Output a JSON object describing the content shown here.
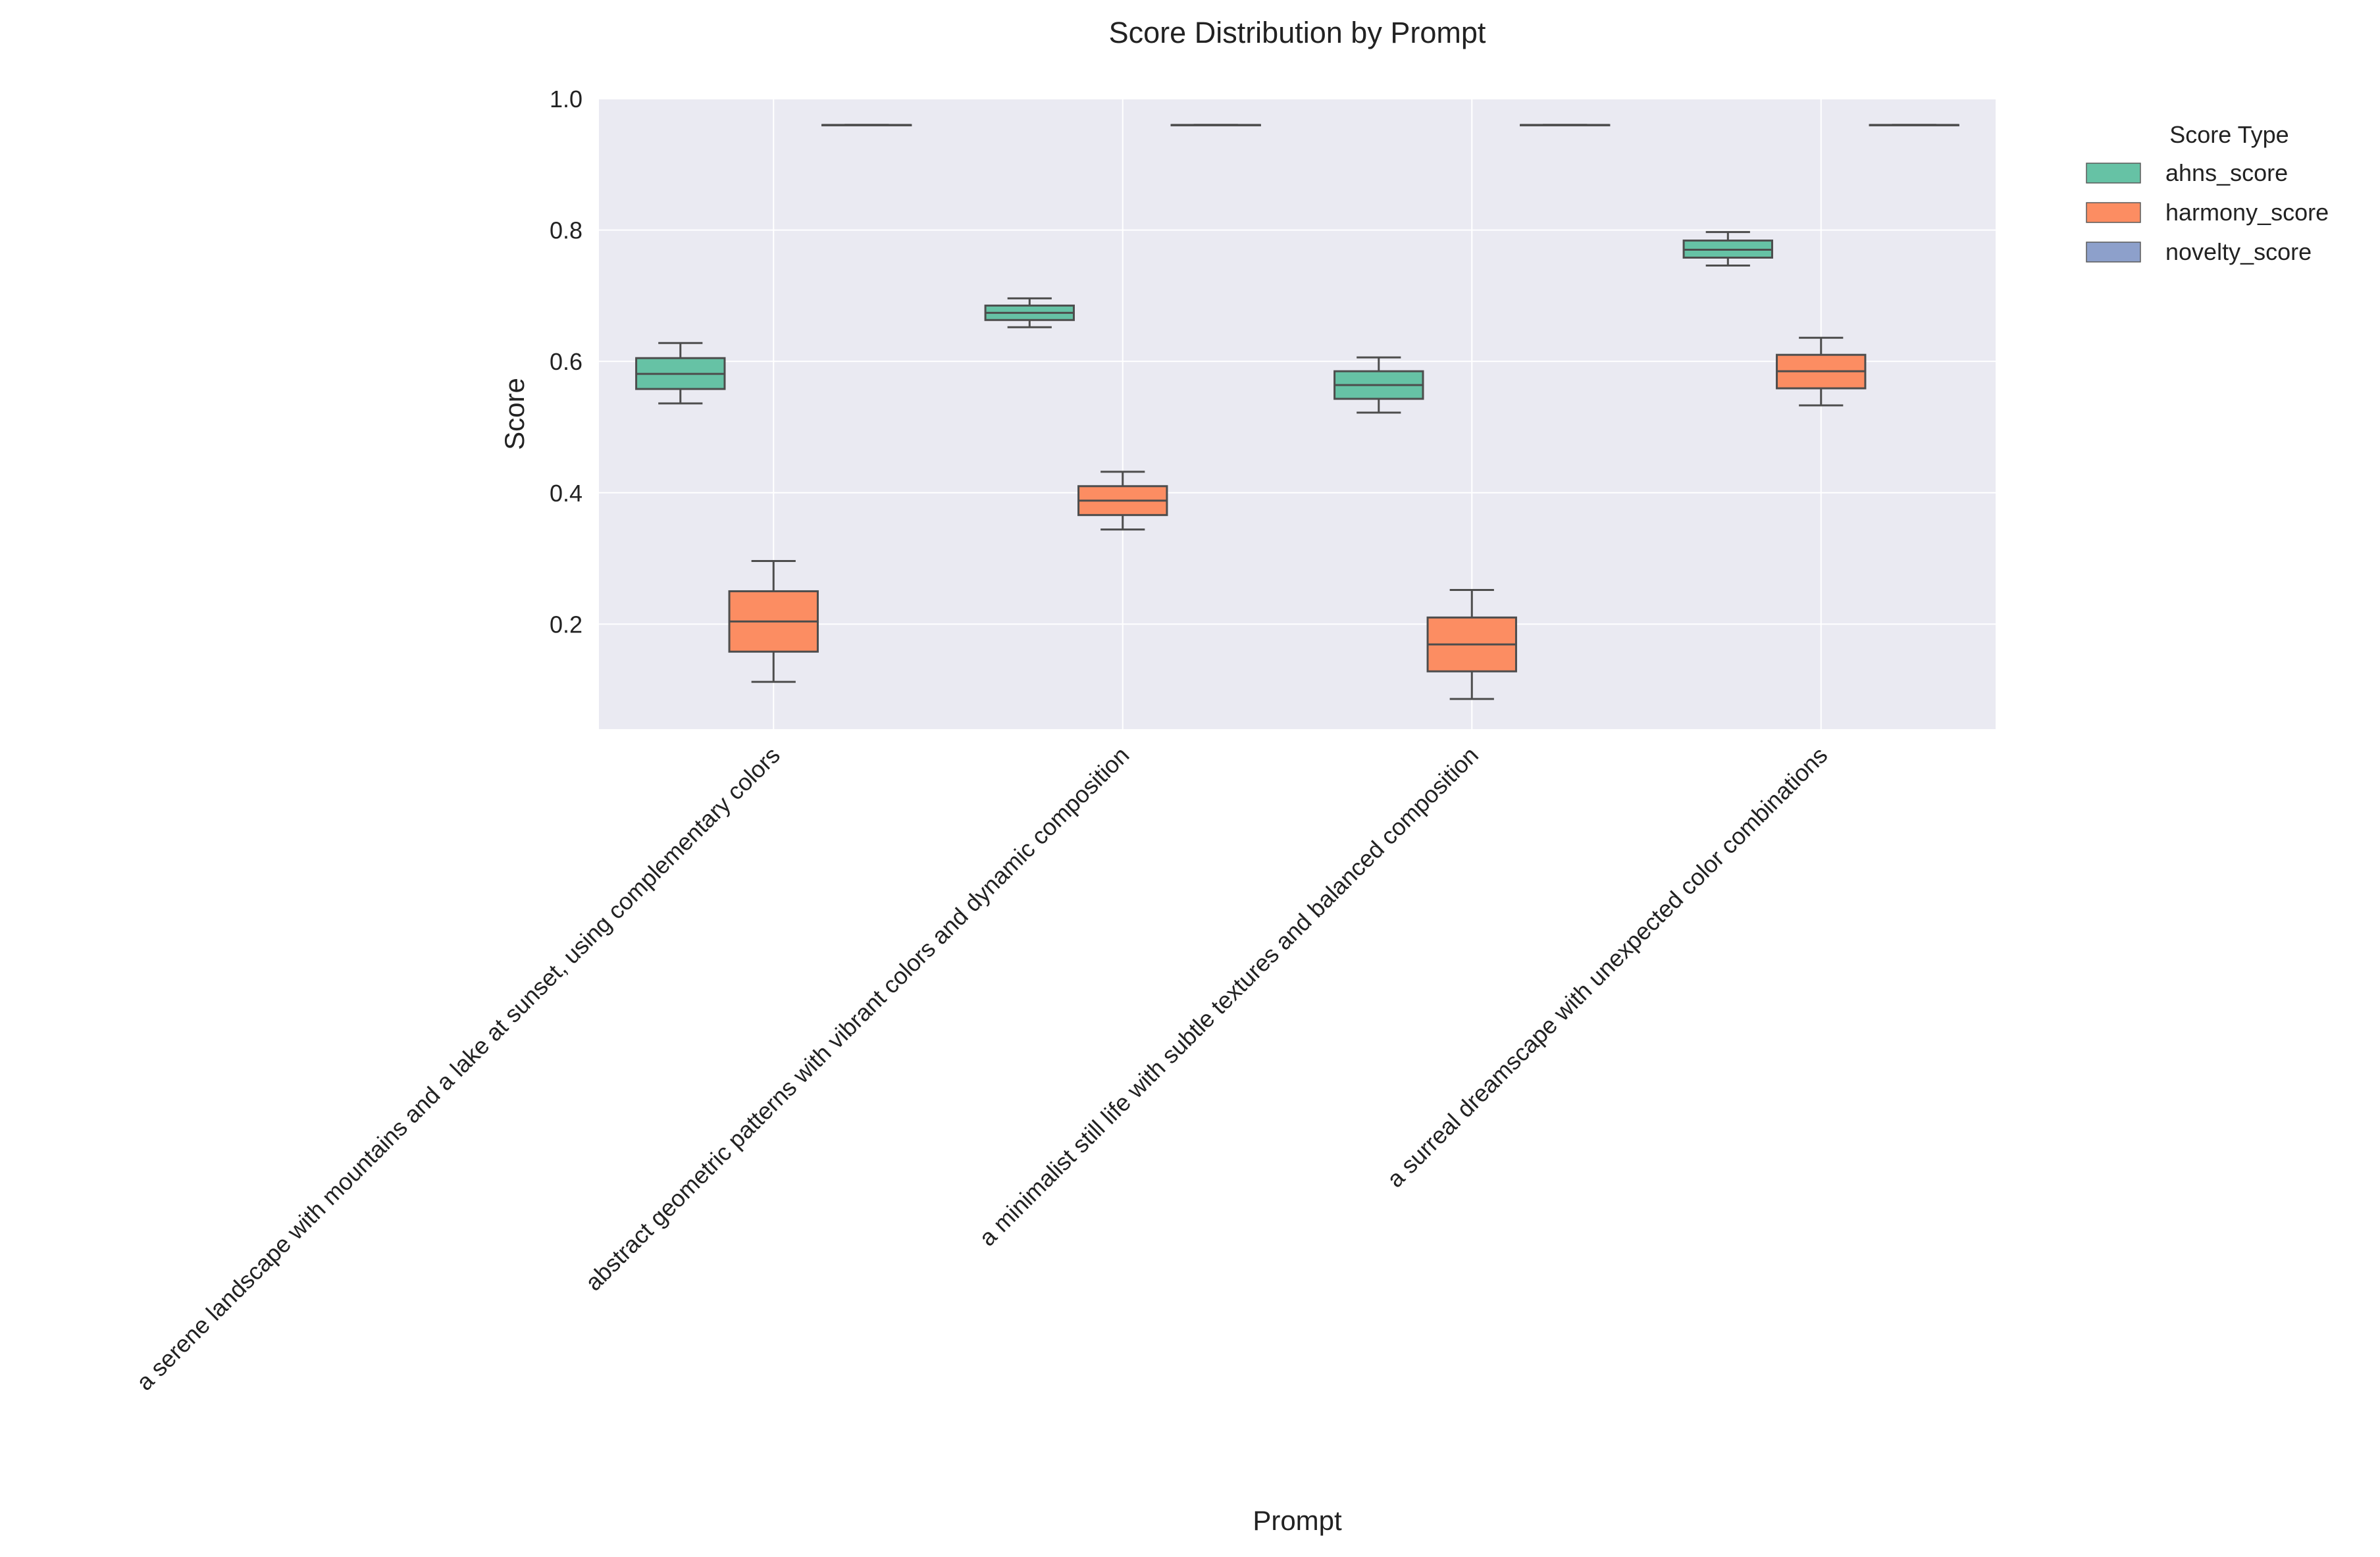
{
  "chart_data": {
    "type": "box",
    "title": "Score Distribution by Prompt",
    "xlabel": "Prompt",
    "ylabel": "Score",
    "ylim": [
      0.04,
      1.0
    ],
    "yticks": [
      0.2,
      0.4,
      0.6,
      0.8,
      1.0
    ],
    "ytick_labels": [
      "0.2",
      "0.4",
      "0.6",
      "0.8",
      "1.0"
    ],
    "grid": true,
    "legend_position": "outside-top-right",
    "categories": [
      "a serene landscape with mountains and a lake at sunset, using complementary colors",
      "abstract geometric patterns with vibrant colors and dynamic composition",
      "a minimalist still life with subtle textures and balanced composition",
      "a surreal dreamscape with unexpected color combinations"
    ],
    "legend": {
      "title": "Score Type"
    },
    "series": [
      {
        "name": "ahns_score",
        "color": "#66c2a5",
        "boxes": [
          {
            "whislo": 0.536,
            "q1": 0.558,
            "med": 0.581,
            "q3": 0.605,
            "whishi": 0.628
          },
          {
            "whislo": 0.652,
            "q1": 0.663,
            "med": 0.674,
            "q3": 0.685,
            "whishi": 0.696
          },
          {
            "whislo": 0.522,
            "q1": 0.543,
            "med": 0.564,
            "q3": 0.585,
            "whishi": 0.606
          },
          {
            "whislo": 0.746,
            "q1": 0.758,
            "med": 0.77,
            "q3": 0.784,
            "whishi": 0.797
          }
        ]
      },
      {
        "name": "harmony_score",
        "color": "#fc8d62",
        "boxes": [
          {
            "whislo": 0.112,
            "q1": 0.158,
            "med": 0.204,
            "q3": 0.25,
            "whishi": 0.296
          },
          {
            "whislo": 0.344,
            "q1": 0.366,
            "med": 0.388,
            "q3": 0.41,
            "whishi": 0.432
          },
          {
            "whislo": 0.086,
            "q1": 0.128,
            "med": 0.169,
            "q3": 0.21,
            "whishi": 0.252
          },
          {
            "whislo": 0.533,
            "q1": 0.559,
            "med": 0.585,
            "q3": 0.61,
            "whishi": 0.636
          }
        ]
      },
      {
        "name": "novelty_score",
        "color": "#8da0cb",
        "boxes": [
          {
            "whislo": 0.96,
            "q1": 0.96,
            "med": 0.96,
            "q3": 0.96,
            "whishi": 0.96
          },
          {
            "whislo": 0.96,
            "q1": 0.96,
            "med": 0.96,
            "q3": 0.96,
            "whishi": 0.96
          },
          {
            "whislo": 0.96,
            "q1": 0.96,
            "med": 0.96,
            "q3": 0.96,
            "whishi": 0.96
          },
          {
            "whislo": 0.96,
            "q1": 0.96,
            "med": 0.96,
            "q3": 0.96,
            "whishi": 0.96
          }
        ]
      }
    ]
  }
}
